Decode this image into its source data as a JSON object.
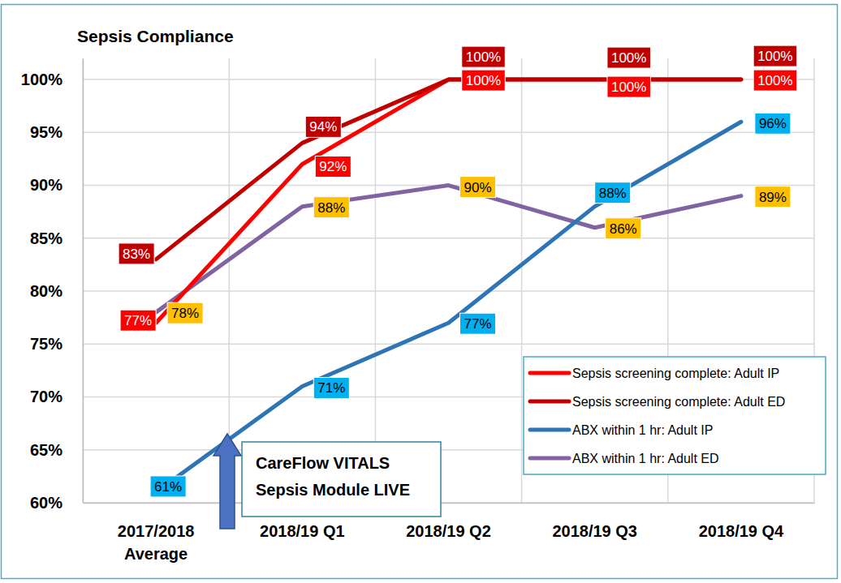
{
  "chart_data": {
    "type": "line",
    "title": "Sepsis Compliance",
    "categories": [
      "2017/2018\nAverage",
      "2018/19 Q1",
      "2018/19 Q2",
      "2018/19 Q3",
      "2018/19 Q4"
    ],
    "series": [
      {
        "name": "Sepsis screening complete: Adult IP",
        "color": "#ff0000",
        "values": [
          77,
          92,
          100,
          100,
          100
        ],
        "value_labels": [
          "77%",
          "92%",
          "100%",
          "100%",
          "100%"
        ]
      },
      {
        "name": "Sepsis screening complete: Adult ED",
        "color": "#c00000",
        "values": [
          83,
          94,
          100,
          100,
          100
        ],
        "value_labels": [
          "83%",
          "94%",
          "100%",
          "100%",
          "100%"
        ]
      },
      {
        "name": "ABX within 1 hr: Adult IP",
        "color": "#2e75b6",
        "values": [
          61,
          71,
          77,
          88,
          96
        ],
        "value_labels": [
          "61%",
          "71%",
          "77%",
          "88%",
          "96%"
        ]
      },
      {
        "name": "ABX within 1 hr: Adult ED",
        "color": "#8064a2",
        "values": [
          78,
          88,
          90,
          86,
          89
        ],
        "value_labels": [
          "78%",
          "88%",
          "90%",
          "86%",
          "89%"
        ]
      }
    ],
    "ylim": [
      60,
      102
    ],
    "yticks": [
      {
        "value": 60,
        "label": "60%"
      },
      {
        "value": 65,
        "label": "65%"
      },
      {
        "value": 70,
        "label": "70%"
      },
      {
        "value": 75,
        "label": "75%"
      },
      {
        "value": 80,
        "label": "80%"
      },
      {
        "value": 85,
        "label": "85%"
      },
      {
        "value": 90,
        "label": "90%"
      },
      {
        "value": 95,
        "label": "95%"
      },
      {
        "value": 100,
        "label": "100%"
      }
    ],
    "grid": true,
    "legend": "lower right",
    "data_labels": true,
    "annotation": "CareFlow VITALS\nSepsis Module LIVE"
  }
}
